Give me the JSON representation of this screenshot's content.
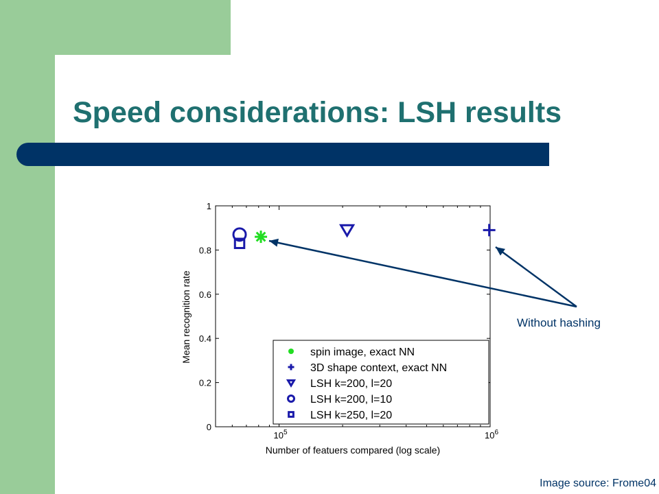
{
  "slide": {
    "title": "Speed considerations: LSH results",
    "annotation": "Without hashing",
    "source": "Image source: Frome04",
    "colors": {
      "title": "#1f7070",
      "rule": "#003366",
      "sidebar": "#99cc99",
      "arrow": "#003366"
    }
  },
  "chart_data": {
    "type": "scatter",
    "xlabel": "Number of featuers compared (log scale)",
    "ylabel": "Mean recognition rate",
    "xscale": "log",
    "xlim": [
      50000,
      1000000
    ],
    "ylim": [
      0,
      1
    ],
    "x_tick_labels": [
      "10^5",
      "10^6"
    ],
    "y_tick_labels": [
      "0",
      "0.2",
      "0.4",
      "0.6",
      "0.8",
      "1"
    ],
    "legend_placement": "bottom-right",
    "series": [
      {
        "name": "spin image, exact NN",
        "marker": "asterisk",
        "color": "#22dd22",
        "x": 82000,
        "y": 0.86
      },
      {
        "name": "3D shape context, exact NN",
        "marker": "plus",
        "color": "#1a1aaa",
        "x": 990000,
        "y": 0.89
      },
      {
        "name": "LSH k=200, l=20",
        "marker": "triangle-down",
        "color": "#1a1aaa",
        "x": 210000,
        "y": 0.89
      },
      {
        "name": "LSH k=200, l=10",
        "marker": "circle",
        "color": "#1a1aaa",
        "x": 65000,
        "y": 0.87
      },
      {
        "name": "LSH k=250, l=20",
        "marker": "square",
        "color": "#1a1aaa",
        "x": 65000,
        "y": 0.83
      }
    ]
  }
}
